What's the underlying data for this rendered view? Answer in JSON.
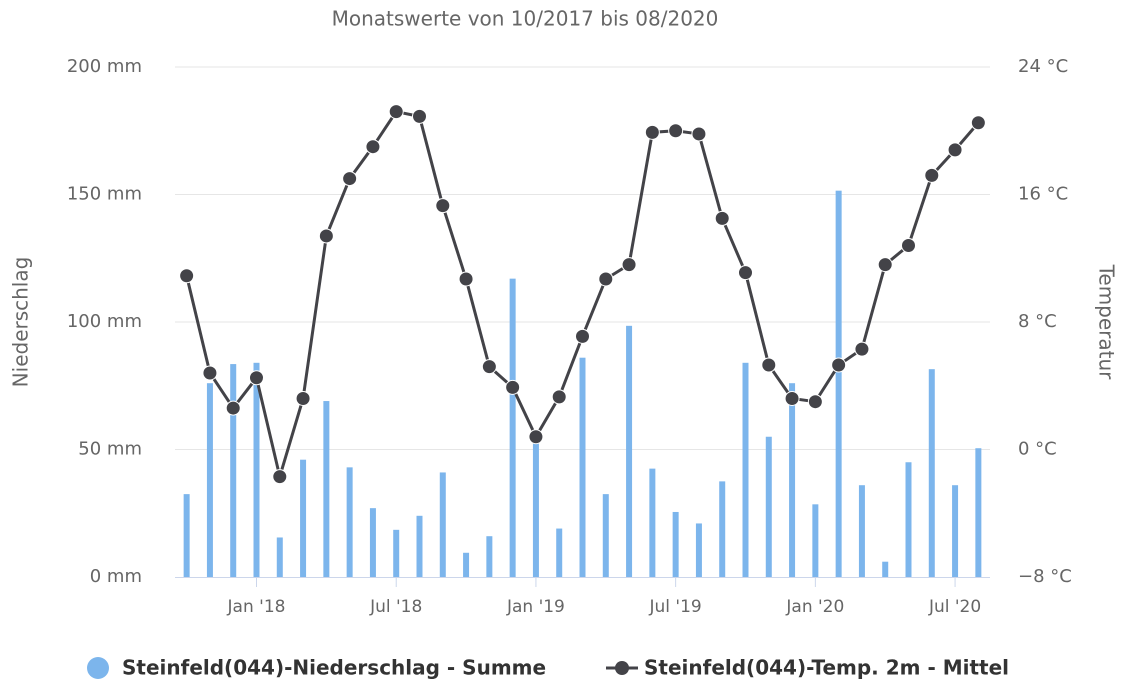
{
  "chart_data": {
    "type": "bar-line",
    "subtitle": "Monatswerte von 10/2017 bis 08/2020",
    "y_label": "Niederschlag",
    "y2_label": "Temperatur",
    "categories": [
      null,
      null,
      null,
      "Jan '18",
      null,
      null,
      null,
      null,
      null,
      "Jul '18",
      null,
      null,
      null,
      null,
      null,
      "Jan '19",
      null,
      null,
      null,
      null,
      null,
      "Jul '19",
      null,
      null,
      null,
      null,
      null,
      "Jan '20",
      null,
      null,
      null,
      null,
      null,
      "Jul '20",
      null
    ],
    "series": [
      {
        "name": "Steinfeld(044)-Niederschlag - Summe",
        "type": "bar",
        "color": "#7cb5ec",
        "values": [
          32.5,
          76,
          83.5,
          84,
          15.5,
          46,
          69,
          43,
          27,
          18.5,
          24,
          41,
          9.5,
          16,
          117,
          55,
          19,
          86,
          32.5,
          98.5,
          42.5,
          25.5,
          21,
          37.5,
          84,
          55,
          76,
          28.5,
          151.5,
          36,
          6,
          45,
          81.5,
          36,
          50.5
        ]
      },
      {
        "name": "Steinfeld(044)-Temp. 2m - Mittel",
        "type": "line",
        "axis": "y2",
        "color": "#434348",
        "values": [
          10.9,
          4.8,
          2.6,
          4.5,
          -1.7,
          3.2,
          13.4,
          17.0,
          19.0,
          21.2,
          20.9,
          15.3,
          10.7,
          5.2,
          3.9,
          0.8,
          3.3,
          7.1,
          10.7,
          11.6,
          19.9,
          20.0,
          19.8,
          14.5,
          11.1,
          5.3,
          3.2,
          3.0,
          5.3,
          6.3,
          11.6,
          12.8,
          17.2,
          18.8,
          20.5
        ]
      }
    ],
    "ylim": [
      0,
      200
    ],
    "yticks": [
      {
        "value": 0,
        "label": "0 mm"
      },
      {
        "value": 50,
        "label": "50 mm"
      },
      {
        "value": 100,
        "label": "100 mm"
      },
      {
        "value": 150,
        "label": "150 mm"
      },
      {
        "value": 200,
        "label": "200 mm"
      }
    ],
    "y2lim": [
      -8,
      24
    ],
    "y2ticks": [
      {
        "value": -8,
        "label": "−8 °C"
      },
      {
        "value": 0,
        "label": "0 °C"
      },
      {
        "value": 8,
        "label": "8 °C"
      },
      {
        "value": 16,
        "label": "16 °C"
      },
      {
        "value": 24,
        "label": "24 °C"
      }
    ],
    "grid": true
  }
}
